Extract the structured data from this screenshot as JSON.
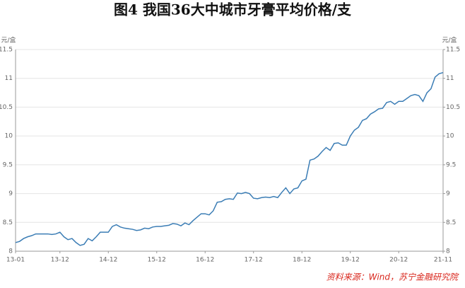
{
  "chart_data": {
    "type": "line",
    "title": "图4 我国36大中城市牙膏平均价格/支",
    "ylabel": "元/盒",
    "y2label": "元/盒",
    "source": "资料来源：Wind，苏宁金融研究院",
    "categories": [
      "13-01",
      null,
      null,
      null,
      null,
      null,
      null,
      null,
      null,
      null,
      null,
      "13-12",
      null,
      null,
      null,
      null,
      null,
      null,
      null,
      null,
      null,
      null,
      null,
      "14-12",
      null,
      null,
      null,
      null,
      null,
      null,
      null,
      null,
      null,
      null,
      null,
      "15-12",
      null,
      null,
      null,
      null,
      null,
      null,
      null,
      null,
      null,
      null,
      null,
      "16-12",
      null,
      null,
      null,
      null,
      null,
      null,
      null,
      null,
      null,
      null,
      null,
      "17-12",
      null,
      null,
      null,
      null,
      null,
      null,
      null,
      null,
      null,
      null,
      null,
      "18-12",
      null,
      null,
      null,
      null,
      null,
      null,
      null,
      null,
      null,
      null,
      null,
      "19-12",
      null,
      null,
      null,
      null,
      null,
      null,
      null,
      null,
      null,
      null,
      null,
      "20-12",
      null,
      null,
      null,
      null,
      null,
      null,
      null,
      null,
      null,
      null,
      "21-11"
    ],
    "series": [
      {
        "color": "#3b7db5",
        "values": [
          8.15,
          8.17,
          8.22,
          8.25,
          8.27,
          8.3,
          8.3,
          8.3,
          8.3,
          8.29,
          8.3,
          8.33,
          8.25,
          8.2,
          8.22,
          8.15,
          8.1,
          8.12,
          8.22,
          8.18,
          8.25,
          8.33,
          8.33,
          8.33,
          8.43,
          8.46,
          8.42,
          8.4,
          8.39,
          8.38,
          8.36,
          8.37,
          8.4,
          8.39,
          8.42,
          8.43,
          8.43,
          8.44,
          8.45,
          8.48,
          8.47,
          8.44,
          8.49,
          8.46,
          8.53,
          8.59,
          8.65,
          8.65,
          8.63,
          8.7,
          8.85,
          8.86,
          8.9,
          8.91,
          8.9,
          9.01,
          9.0,
          9.02,
          9.0,
          8.92,
          8.91,
          8.93,
          8.94,
          8.93,
          8.95,
          8.93,
          9.02,
          9.1,
          9.0,
          9.08,
          9.1,
          9.22,
          9.25,
          9.58,
          9.6,
          9.65,
          9.73,
          9.8,
          9.75,
          9.87,
          9.88,
          9.84,
          9.84,
          10.0,
          10.1,
          10.15,
          10.27,
          10.3,
          10.38,
          10.42,
          10.47,
          10.48,
          10.58,
          10.6,
          10.55,
          10.6,
          10.6,
          10.65,
          10.7,
          10.72,
          10.7,
          10.6,
          10.75,
          10.82,
          11.02,
          11.08,
          11.1
        ]
      }
    ],
    "ylim": [
      8,
      11.5
    ],
    "yticks": [
      8,
      8.5,
      9,
      9.5,
      10,
      10.5,
      11,
      11.5
    ],
    "y2lim": [
      8,
      11.5
    ],
    "y2ticks": [
      8,
      8.5,
      9,
      9.5,
      10,
      10.5,
      11,
      11.5
    ],
    "grid": true
  }
}
